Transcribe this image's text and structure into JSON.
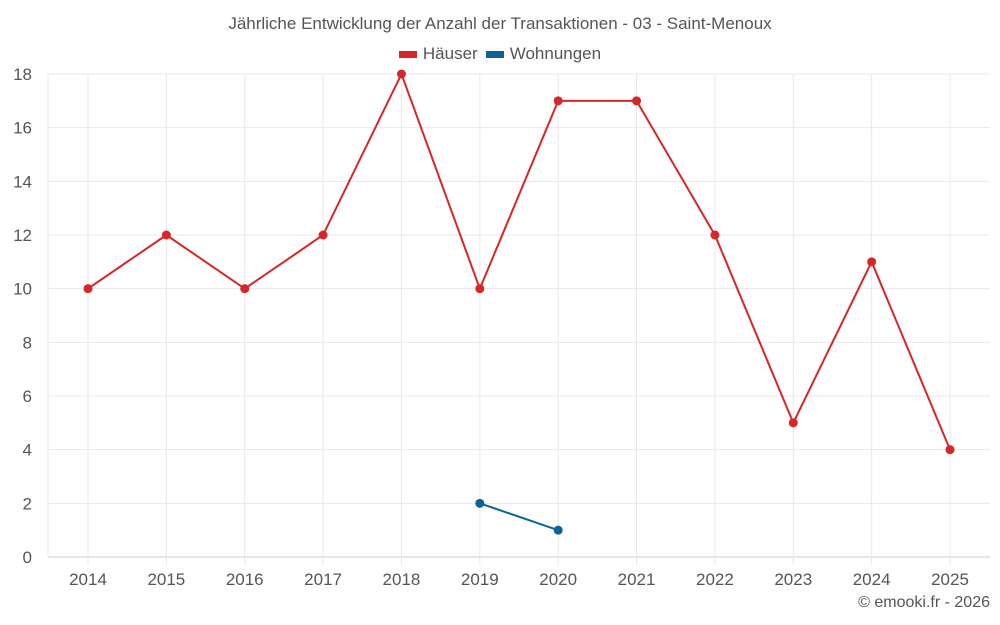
{
  "chart_data": {
    "type": "line",
    "title": "Jährliche Entwicklung der Anzahl der Transaktionen - 03 - Saint-Menoux",
    "xlabel": "",
    "ylabel": "",
    "categories": [
      "2014",
      "2015",
      "2016",
      "2017",
      "2018",
      "2019",
      "2020",
      "2021",
      "2022",
      "2023",
      "2024",
      "2025"
    ],
    "series": [
      {
        "name": "Häuser",
        "color": "#d62728",
        "values": [
          10,
          12,
          10,
          12,
          18,
          10,
          17,
          17,
          12,
          5,
          11,
          4
        ]
      },
      {
        "name": "Wohnungen",
        "color": "#0b6399",
        "values": [
          null,
          null,
          null,
          null,
          null,
          2,
          1,
          null,
          null,
          null,
          null,
          null
        ]
      }
    ],
    "ylim": [
      0,
      18
    ],
    "yticks": [
      0,
      2,
      4,
      6,
      8,
      10,
      12,
      14,
      16,
      18
    ],
    "grid": true,
    "legend_position": "top-center"
  },
  "legend": {
    "items": [
      {
        "label": "Häuser",
        "color": "#d62728"
      },
      {
        "label": "Wohnungen",
        "color": "#0b6399"
      }
    ]
  },
  "credit": "© emooki.fr - 2026"
}
